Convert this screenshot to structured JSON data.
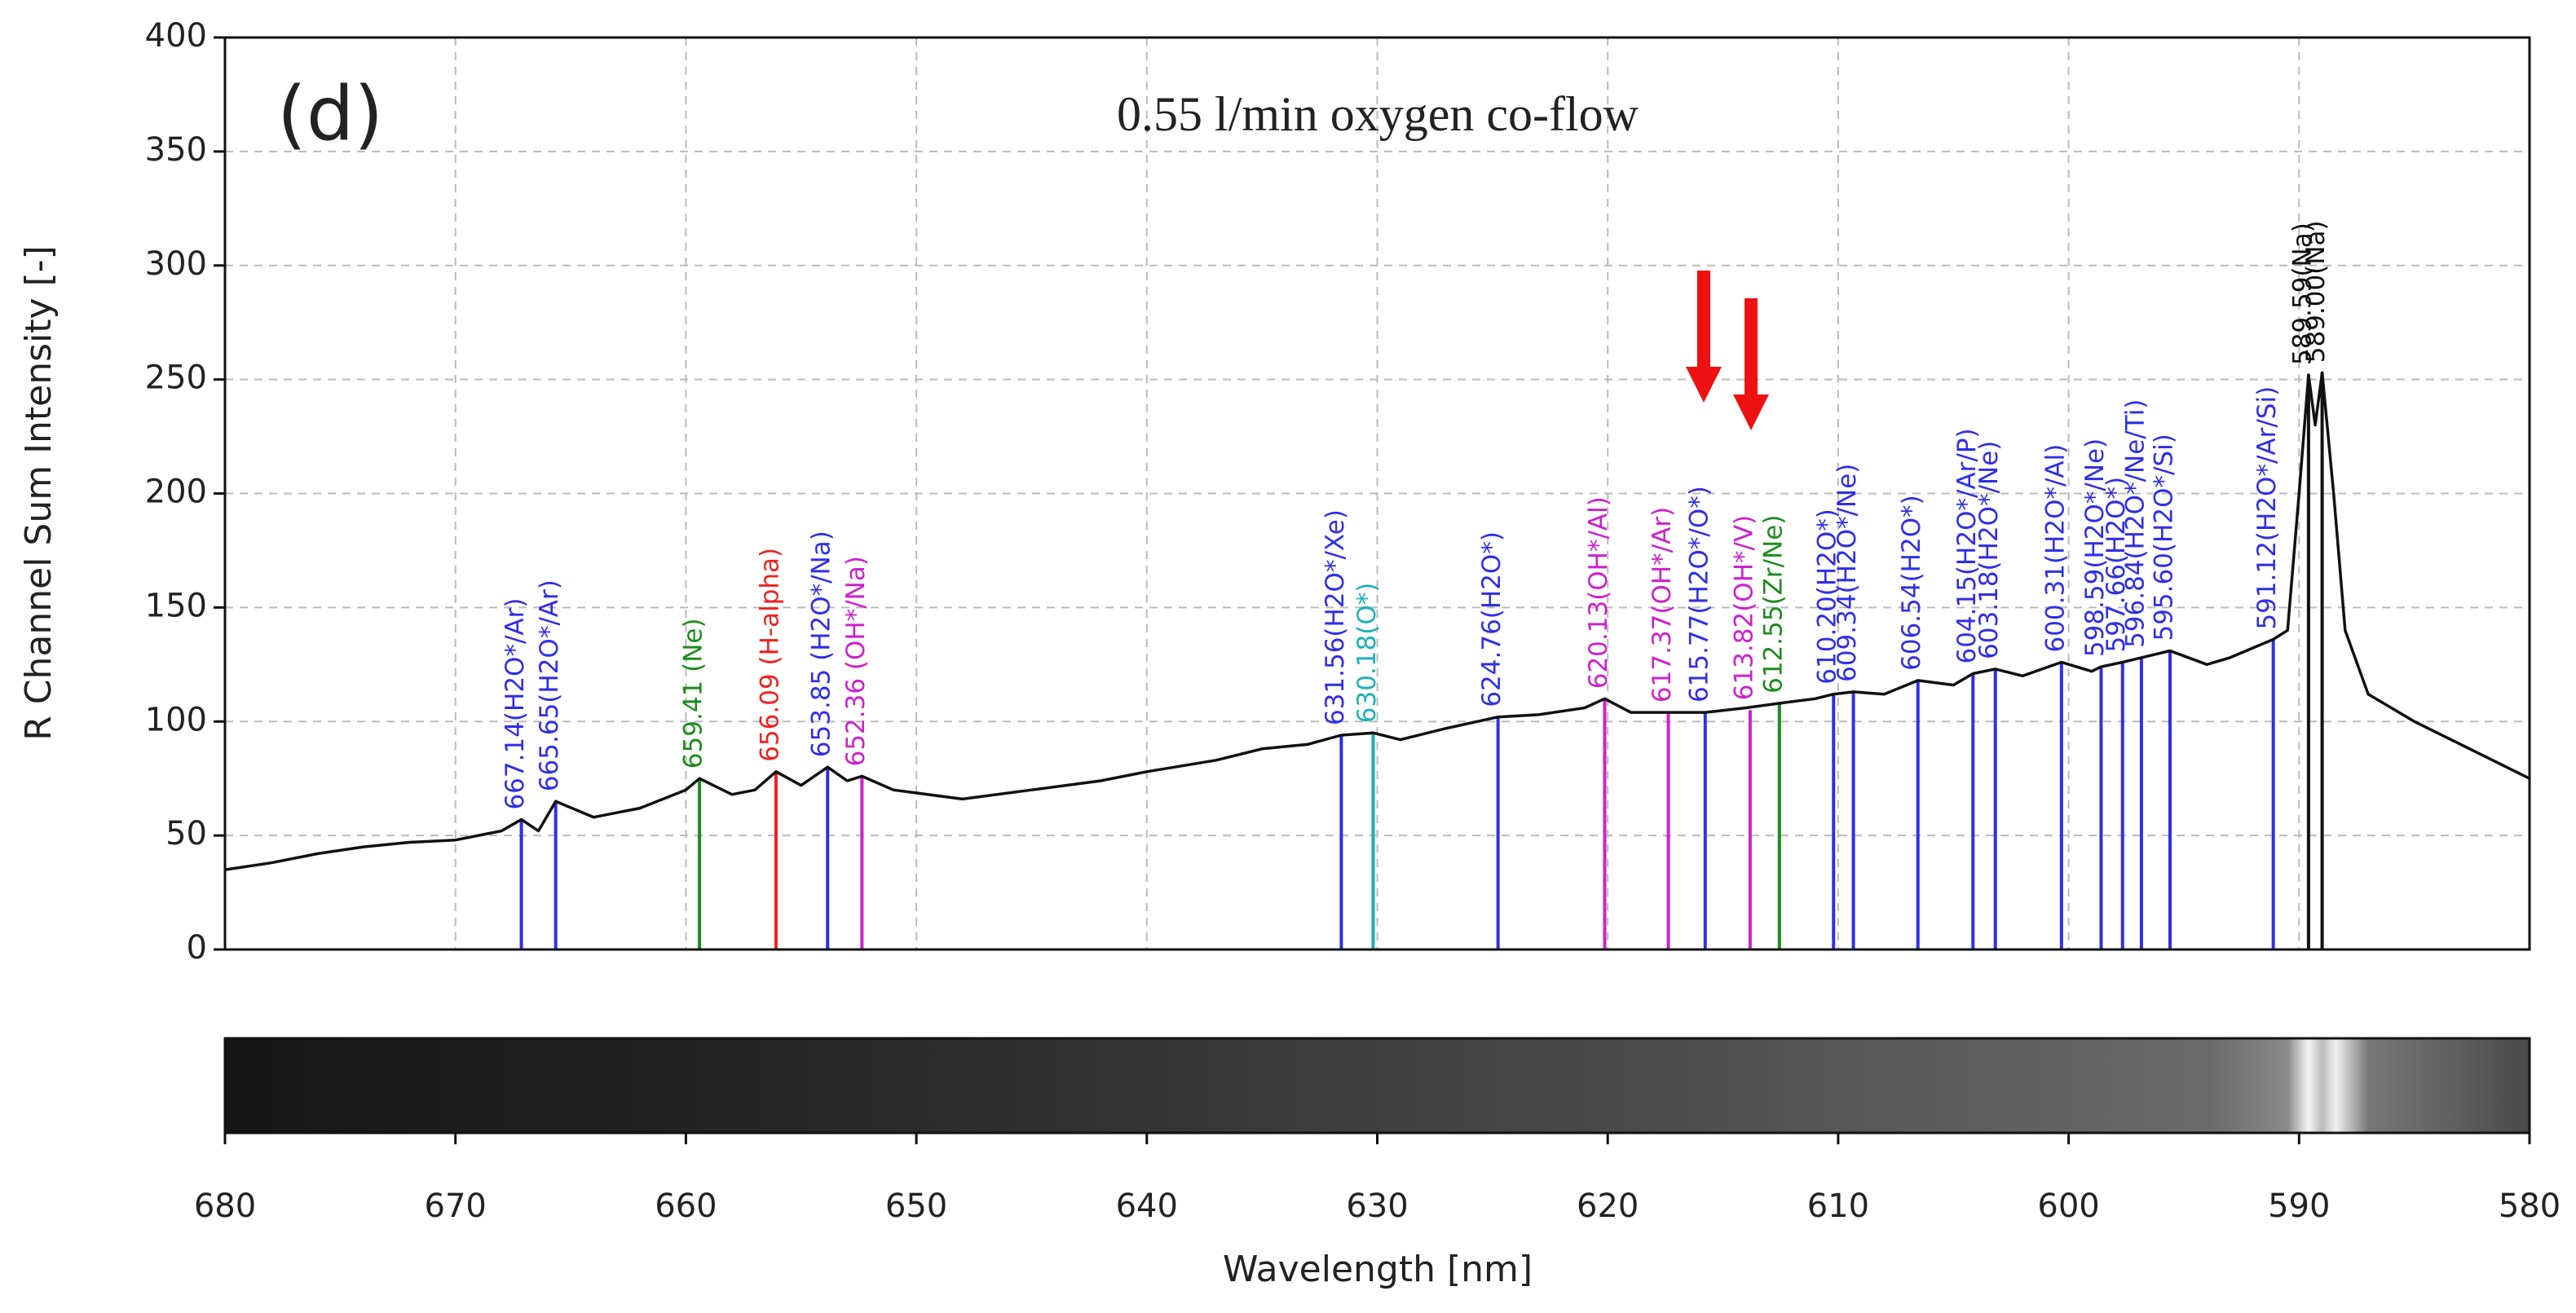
{
  "chart_data": {
    "type": "line",
    "panel_label": "(d)",
    "title": "0.55 l/min oxygen co-flow",
    "xlabel": "Wavelength [nm]",
    "ylabel": "R Channel Sum Intensity [-]",
    "xlim": [
      680,
      580
    ],
    "ylim": [
      0,
      400
    ],
    "xticks": [
      680,
      670,
      660,
      650,
      640,
      630,
      620,
      610,
      600,
      590,
      580
    ],
    "yticks": [
      0,
      50,
      100,
      150,
      200,
      250,
      300,
      350,
      400
    ],
    "grid": true,
    "color": "#111111",
    "x": [
      680,
      678,
      676,
      674,
      672,
      670,
      668,
      667.14,
      666.4,
      665.65,
      664,
      662,
      660,
      659.41,
      658,
      657,
      656.09,
      655,
      653.85,
      653,
      652.36,
      651,
      648,
      645,
      642,
      640,
      637,
      635,
      633,
      631.56,
      630.18,
      629,
      627,
      624.76,
      623,
      621,
      620.13,
      619,
      617.37,
      615.77,
      614,
      612.55,
      611,
      610.2,
      609.34,
      608,
      606.54,
      605,
      604.15,
      603.18,
      602,
      600.31,
      599,
      598.59,
      597.66,
      596.84,
      595.6,
      594,
      593,
      591.12,
      590.5,
      590,
      589.59,
      589.3,
      589,
      588.5,
      588,
      587,
      585,
      583,
      581,
      580
    ],
    "values": [
      35,
      38,
      42,
      45,
      47,
      48,
      52,
      57,
      52,
      65,
      58,
      62,
      70,
      75,
      68,
      70,
      78,
      72,
      80,
      74,
      76,
      70,
      66,
      70,
      74,
      78,
      83,
      88,
      90,
      94,
      95,
      92,
      97,
      102,
      103,
      106,
      110,
      104,
      104,
      104,
      106,
      108,
      110,
      112,
      113,
      112,
      118,
      116,
      121,
      123,
      120,
      126,
      122,
      124,
      126,
      128,
      131,
      125,
      128,
      136,
      140,
      200,
      252,
      230,
      253,
      200,
      140,
      112,
      100,
      90,
      80,
      75
    ],
    "lines": [
      {
        "x": 667.14,
        "top": 57,
        "label": "667.14(H2O*/Ar)",
        "color": "#2f2fe6"
      },
      {
        "x": 665.65,
        "top": 65,
        "label": "665.65(H2O*/Ar)",
        "color": "#2f2fe6"
      },
      {
        "x": 659.41,
        "top": 75,
        "label": "659.41 (Ne)",
        "color": "#1f8a1f"
      },
      {
        "x": 656.09,
        "top": 78,
        "label": "656.09 (H-alpha)",
        "color": "#ee2222"
      },
      {
        "x": 653.85,
        "top": 80,
        "label": "653.85 (H2O*/Na)",
        "color": "#2f2fe6"
      },
      {
        "x": 652.36,
        "top": 76,
        "label": "652.36 (OH*/Na)",
        "color": "#cc22cc"
      },
      {
        "x": 631.56,
        "top": 94,
        "label": "631.56(H2O*/Xe)",
        "color": "#2f2fe6"
      },
      {
        "x": 630.18,
        "top": 95,
        "label": "630.18(O*)",
        "color": "#1fb0b8"
      },
      {
        "x": 624.76,
        "top": 102,
        "label": "624.76(H2O*)",
        "color": "#2f2fe6"
      },
      {
        "x": 620.13,
        "top": 110,
        "label": "620.13(OH*/Al)",
        "color": "#cc22cc"
      },
      {
        "x": 617.37,
        "top": 104,
        "label": "617.37(OH*/Ar)",
        "color": "#cc22cc"
      },
      {
        "x": 615.77,
        "top": 104,
        "label": "615.77(H2O*/O*)",
        "color": "#2f2fe6"
      },
      {
        "x": 613.82,
        "top": 105,
        "label": "613.82(OH*/V)",
        "color": "#cc22cc"
      },
      {
        "x": 612.55,
        "top": 108,
        "label": "612.55(Zr/Ne)",
        "color": "#1f8a1f"
      },
      {
        "x": 610.2,
        "top": 112,
        "label": "610.20(H2O*)",
        "color": "#2f2fe6"
      },
      {
        "x": 609.34,
        "top": 113,
        "label": "609.34(H2O*/Ne)",
        "color": "#2f2fe6"
      },
      {
        "x": 606.54,
        "top": 118,
        "label": "606.54(H2O*)",
        "color": "#2f2fe6"
      },
      {
        "x": 604.15,
        "top": 121,
        "label": "604.15(H2O*/Ar/P)",
        "color": "#2f2fe6"
      },
      {
        "x": 603.18,
        "top": 123,
        "label": "603.18(H2O*/Ne)",
        "color": "#2f2fe6"
      },
      {
        "x": 600.31,
        "top": 126,
        "label": "600.31(H2O*/Al)",
        "color": "#2f2fe6"
      },
      {
        "x": 598.59,
        "top": 124,
        "label": "598.59(H2O*/Ne)",
        "color": "#2f2fe6"
      },
      {
        "x": 597.66,
        "top": 126,
        "label": "597.66(H2O*)",
        "color": "#2f2fe6"
      },
      {
        "x": 596.84,
        "top": 128,
        "label": "596.84(H2O*/Ne/Ti)",
        "color": "#2f2fe6"
      },
      {
        "x": 595.6,
        "top": 131,
        "label": "595.60(H2O*/Si)",
        "color": "#2f2fe6"
      },
      {
        "x": 591.12,
        "top": 136,
        "label": "591.12(H2O*/Ar/Si)",
        "color": "#2f2fe6"
      },
      {
        "x": 589.59,
        "top": 252,
        "label": "589.59(Na)",
        "color": "#111111"
      },
      {
        "x": 589,
        "top": 253,
        "label": "589.00(Na)",
        "color": "#111111"
      }
    ]
  }
}
